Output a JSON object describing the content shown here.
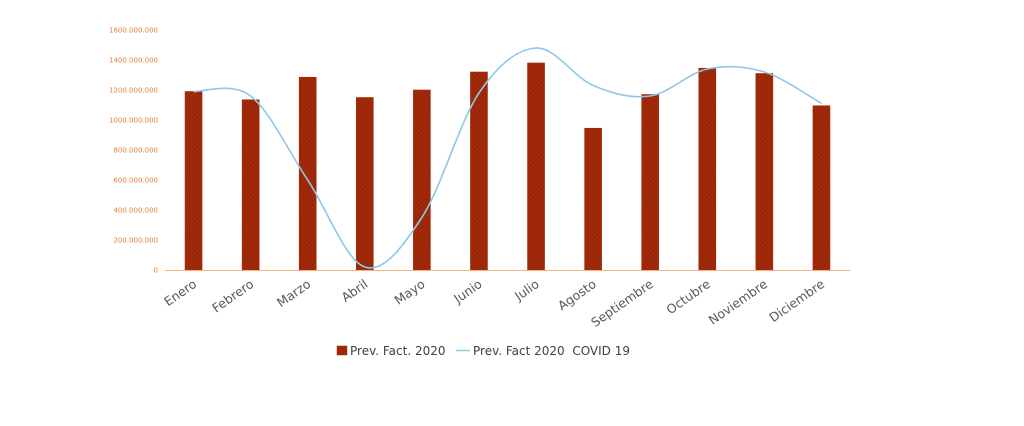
{
  "chart_data": {
    "type": "bar",
    "title": "",
    "xlabel": "",
    "ylabel": "",
    "categories": [
      "Enero",
      "Febrero",
      "Marzo",
      "Abril",
      "Mayo",
      "Junio",
      "Julio",
      "Agosto",
      "Septiembre",
      "Octubre",
      "Noviembre",
      "Diciembre"
    ],
    "y_ticks": [
      "0",
      "200.000.000",
      "400.000.000",
      "600.000.000",
      "800.000.000",
      "1000.000.000",
      "1200.000.000",
      "1400.000.000",
      "1600.000.000"
    ],
    "ylim": [
      0,
      1600000000
    ],
    "grid": false,
    "legend_position": "bottom",
    "series": [
      {
        "name": "Prev. Fact. 2020",
        "type": "bar",
        "color": "#a52a0a",
        "values": [
          1190000000,
          1135000000,
          1285000000,
          1150000000,
          1200000000,
          1320000000,
          1380000000,
          945000000,
          1170000000,
          1345000000,
          1310000000,
          1095000000
        ]
      },
      {
        "name": "Prev. Fact 2020  COVID 19",
        "type": "line",
        "smooth": true,
        "color": "#8ec8e6",
        "values": [
          1190000000,
          1160000000,
          600000000,
          20000000,
          350000000,
          1180000000,
          1480000000,
          1230000000,
          1160000000,
          1340000000,
          1320000000,
          1110000000
        ]
      }
    ],
    "axis_color": "#f4b183"
  }
}
